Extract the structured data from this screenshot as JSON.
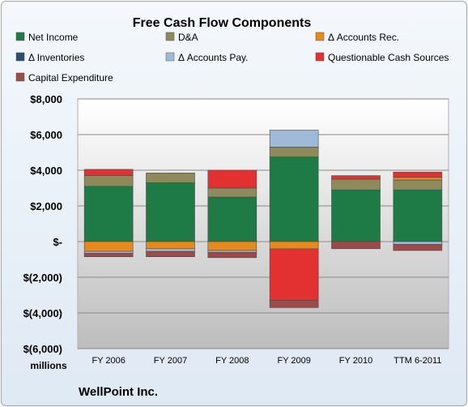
{
  "chart_data": {
    "type": "bar",
    "stacked": true,
    "title": "Free Cash Flow Components",
    "ylabel": "millions",
    "footnote": "WellPoint Inc.",
    "categories": [
      "FY 2006",
      "FY 2007",
      "FY 2008",
      "FY 2009",
      "FY 2010",
      "TTM 6-2011"
    ],
    "yticks": [
      "$8,000",
      "$6,000",
      "$4,000",
      "$2,000",
      "$-",
      "$(2,000)",
      "$(4,000)",
      "$(6,000)"
    ],
    "ylim": [
      -6000,
      8000
    ],
    "grid": true,
    "legend_position": "top",
    "series": [
      {
        "name": "Net Income",
        "color": "#1e7b46",
        "values": [
          3100,
          3300,
          2500,
          4750,
          2900,
          2900
        ]
      },
      {
        "name": "D&A",
        "color": "#8f8a5c",
        "values": [
          600,
          550,
          500,
          550,
          600,
          550
        ]
      },
      {
        "name": "Δ Accounts Rec.",
        "color": "#e68a1e",
        "values": [
          -550,
          -400,
          -500,
          -400,
          0,
          150
        ]
      },
      {
        "name": "Δ Inventories",
        "color": "#2f4f6f",
        "values": [
          0,
          0,
          0,
          0,
          0,
          0
        ]
      },
      {
        "name": "Δ Accounts Pay.",
        "color": "#9fb9d9",
        "values": [
          -100,
          -150,
          -100,
          950,
          0,
          -150
        ]
      },
      {
        "name": "Questionable Cash Sources",
        "color": "#e33030",
        "values": [
          350,
          0,
          1000,
          -2900,
          200,
          300
        ]
      },
      {
        "name": "Capital Expenditure",
        "color": "#9c4a4a",
        "values": [
          -200,
          -300,
          -300,
          -400,
          -400,
          -350
        ]
      }
    ]
  }
}
